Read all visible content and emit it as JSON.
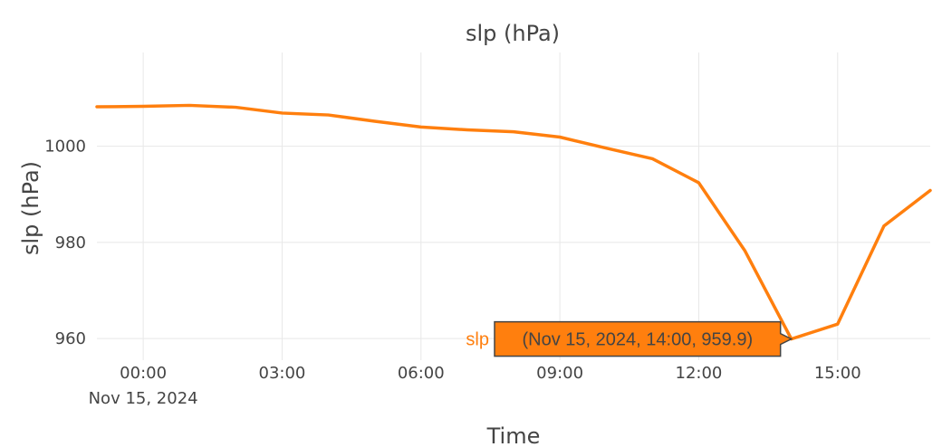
{
  "chart_data": {
    "type": "line",
    "title": "slp (hPa)",
    "xlabel": "Time",
    "ylabel": "slp (hPa)",
    "x_ticks": [
      {
        "hour": 0,
        "label": "00:00",
        "sublabel": "Nov 15, 2024"
      },
      {
        "hour": 3,
        "label": "03:00"
      },
      {
        "hour": 6,
        "label": "06:00"
      },
      {
        "hour": 9,
        "label": "09:00"
      },
      {
        "hour": 12,
        "label": "12:00"
      },
      {
        "hour": 15,
        "label": "15:00"
      }
    ],
    "y_ticks": [
      960,
      980,
      1000
    ],
    "xlim": [
      "2024-11-14 23:00",
      "2024-11-15 17:00"
    ],
    "ylim": [
      955.5,
      1019.5
    ],
    "grid": true,
    "series": [
      {
        "name": "slp",
        "color": "#ff7f0e",
        "x": [
          "2024-11-14 23:00",
          "2024-11-15 00:00",
          "2024-11-15 01:00",
          "2024-11-15 02:00",
          "2024-11-15 03:00",
          "2024-11-15 04:00",
          "2024-11-15 05:00",
          "2024-11-15 06:00",
          "2024-11-15 07:00",
          "2024-11-15 08:00",
          "2024-11-15 09:00",
          "2024-11-15 10:00",
          "2024-11-15 11:00",
          "2024-11-15 12:00",
          "2024-11-15 13:00",
          "2024-11-15 14:00",
          "2024-11-15 15:00",
          "2024-11-15 16:00",
          "2024-11-15 17:00"
        ],
        "y": [
          1008.2,
          1008.3,
          1008.5,
          1008.1,
          1006.9,
          1006.5,
          1005.2,
          1004.0,
          1003.4,
          1003.0,
          1001.9,
          999.6,
          997.4,
          992.4,
          978.2,
          959.9,
          963.0,
          983.4,
          990.8
        ]
      }
    ],
    "hover": {
      "series_name": "slp",
      "text": "(Nov 15, 2024, 14:00, 959.9)",
      "point_index": 15
    }
  }
}
